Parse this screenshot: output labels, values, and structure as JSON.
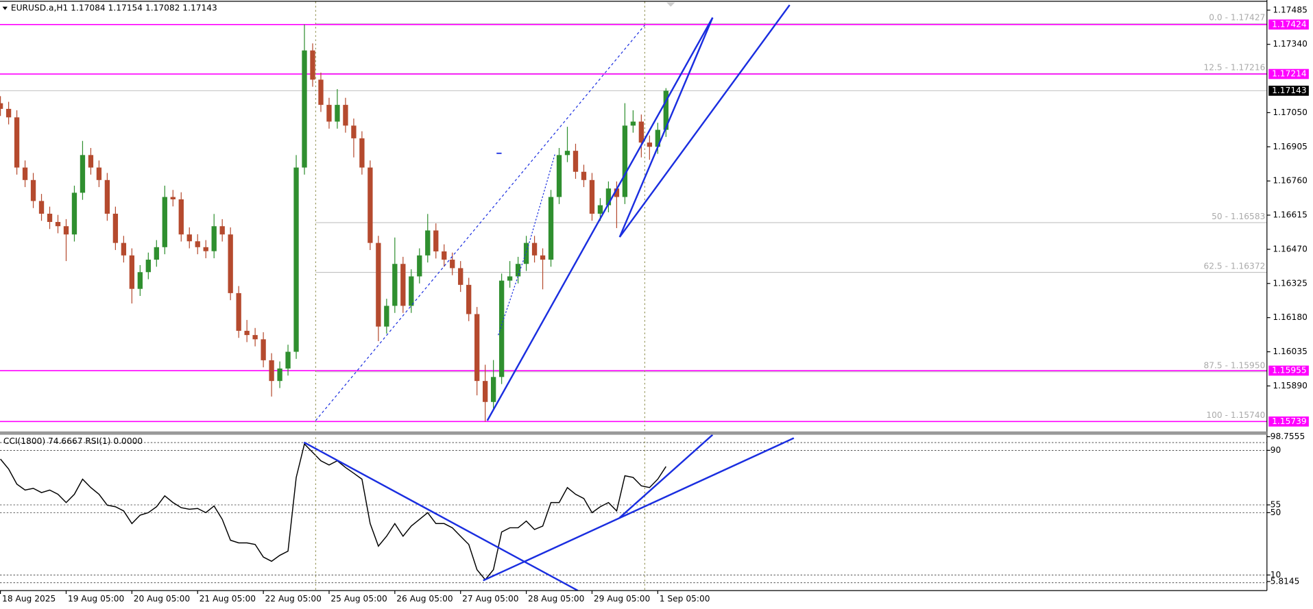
{
  "chart_data": [
    {
      "type": "candlestick",
      "title": "EURUSD.a,H1  1.17084 1.17154 1.17082 1.17143",
      "categories": [
        "18 Aug 2025",
        null,
        null,
        null,
        null,
        null,
        null,
        null,
        "19 Aug 05:00",
        null,
        null,
        null,
        null,
        null,
        null,
        null,
        "20 Aug 05:00",
        null,
        null,
        null,
        null,
        null,
        null,
        null,
        "21 Aug 05:00",
        null,
        null,
        null,
        null,
        null,
        null,
        null,
        "22 Aug 05:00",
        null,
        null,
        null,
        null,
        null,
        null,
        null,
        "25 Aug 05:00",
        null,
        null,
        null,
        null,
        null,
        null,
        null,
        "26 Aug 05:00",
        null,
        null,
        null,
        null,
        null,
        null,
        null,
        "27 Aug 05:00",
        null,
        null,
        null,
        null,
        null,
        null,
        null,
        "28 Aug 05:00",
        null,
        null,
        null,
        null,
        null,
        null,
        null,
        "29 Aug 05:00",
        null,
        null,
        null,
        null,
        null,
        null,
        null,
        "1 Sep 05:00",
        null
      ],
      "open": [
        1.1709,
        1.17066,
        1.1703,
        1.16817,
        1.16764,
        1.16675,
        1.16621,
        1.16586,
        1.16568,
        1.16533,
        1.1671,
        1.1687,
        1.16817,
        1.16764,
        1.16621,
        1.16497,
        1.16444,
        1.16302,
        1.16373,
        1.16426,
        1.16479,
        1.16692,
        1.16682,
        1.16533,
        1.16504,
        1.16479,
        1.16462,
        1.16568,
        1.16533,
        1.16284,
        1.16124,
        1.16106,
        1.16088,
        1.15999,
        1.15911,
        1.15964,
        1.16035,
        1.16817,
        1.17314,
        1.1719,
        1.17083,
        1.17012,
        1.17083,
        1.16995,
        1.16941,
        1.16817,
        1.16497,
        1.16142,
        1.1623,
        1.16408,
        1.1623,
        1.16355,
        1.16444,
        1.1655,
        1.16461,
        1.16426,
        1.1639,
        1.16319,
        1.16195,
        1.15911,
        1.15822,
        1.15928,
        1.16337,
        1.16355,
        1.16408,
        1.16497,
        1.16444,
        1.16426,
        1.16692,
        1.1687,
        1.16888,
        1.16799,
        1.16764,
        1.16621,
        1.16657,
        1.16728,
        1.16692,
        1.16995,
        1.17012,
        1.16923,
        1.16905,
        1.16977
      ],
      "high": [
        1.1712,
        1.17096,
        1.1706,
        1.16847,
        1.16794,
        1.16705,
        1.16651,
        1.16616,
        1.16598,
        1.1674,
        1.1693,
        1.169,
        1.16847,
        1.16794,
        1.16651,
        1.16527,
        1.16474,
        1.16403,
        1.16456,
        1.16509,
        1.1674,
        1.16722,
        1.16712,
        1.16563,
        1.16534,
        1.16509,
        1.1662,
        1.16598,
        1.16563,
        1.16314,
        1.1617,
        1.16136,
        1.16118,
        1.16029,
        1.15994,
        1.16065,
        1.1687,
        1.17424,
        1.17344,
        1.1722,
        1.17113,
        1.1715,
        1.17113,
        1.17025,
        1.16971,
        1.16847,
        1.16527,
        1.1626,
        1.1652,
        1.16438,
        1.16385,
        1.16474,
        1.1662,
        1.1658,
        1.16491,
        1.16456,
        1.1642,
        1.16349,
        1.16225,
        1.1598,
        1.16,
        1.16367,
        1.1642,
        1.16438,
        1.16527,
        1.16527,
        1.16474,
        1.16722,
        1.169,
        1.1699,
        1.16918,
        1.16829,
        1.16794,
        1.16687,
        1.16758,
        1.16758,
        1.1709,
        1.1706,
        1.17042,
        1.16953,
        1.17007,
        1.17154
      ],
      "low": [
        1.17036,
        1.17,
        1.16787,
        1.16734,
        1.16645,
        1.16591,
        1.16556,
        1.16538,
        1.1642,
        1.16503,
        1.1668,
        1.16787,
        1.16734,
        1.16591,
        1.16467,
        1.16414,
        1.1624,
        1.16272,
        1.16343,
        1.16396,
        1.16449,
        1.16652,
        1.16503,
        1.16474,
        1.16449,
        1.16432,
        1.16432,
        1.16503,
        1.16254,
        1.16094,
        1.16076,
        1.16058,
        1.15969,
        1.15845,
        1.15881,
        1.15934,
        1.16005,
        1.16787,
        1.1716,
        1.17053,
        1.16982,
        1.16982,
        1.16965,
        1.1686,
        1.16787,
        1.16467,
        1.1608,
        1.16112,
        1.162,
        1.162,
        1.162,
        1.16325,
        1.16414,
        1.16431,
        1.16396,
        1.1636,
        1.16289,
        1.16165,
        1.1585,
        1.15739,
        1.15792,
        1.15898,
        1.16307,
        1.16325,
        1.16378,
        1.16414,
        1.163,
        1.16396,
        1.16662,
        1.1684,
        1.16769,
        1.16734,
        1.16591,
        1.16591,
        1.16627,
        1.1656,
        1.16662,
        1.16965,
        1.1686,
        1.1685,
        1.16875,
        1.16947
      ],
      "close": [
        1.17066,
        1.1703,
        1.16817,
        1.16764,
        1.16675,
        1.16621,
        1.16586,
        1.16568,
        1.16533,
        1.1671,
        1.1687,
        1.16817,
        1.16764,
        1.16621,
        1.16497,
        1.16444,
        1.16302,
        1.16373,
        1.16426,
        1.16479,
        1.16692,
        1.16682,
        1.16533,
        1.16504,
        1.16479,
        1.16462,
        1.16568,
        1.16533,
        1.16284,
        1.16124,
        1.16106,
        1.16088,
        1.15999,
        1.15911,
        1.15964,
        1.16035,
        1.16817,
        1.17314,
        1.1719,
        1.17083,
        1.17012,
        1.17083,
        1.16995,
        1.16941,
        1.16817,
        1.16497,
        1.16142,
        1.1623,
        1.16408,
        1.1623,
        1.16355,
        1.16444,
        1.1655,
        1.16461,
        1.16426,
        1.1639,
        1.16319,
        1.16195,
        1.15911,
        1.15822,
        1.15928,
        1.16337,
        1.16355,
        1.16408,
        1.16497,
        1.16444,
        1.16426,
        1.16692,
        1.1687,
        1.16888,
        1.16799,
        1.16764,
        1.16621,
        1.16657,
        1.16728,
        1.16692,
        1.16995,
        1.17012,
        1.16923,
        1.16905,
        1.16977,
        1.17143
      ],
      "up_color": "#2f8f2f",
      "down_color": "#b54a2e",
      "ylim": [
        1.15697,
        1.17521
      ],
      "yticks": [
        1.17485,
        {
          "value": 1.1734,
          "label": "1.17340"
        },
        {
          "value": 1.1705,
          "label": "1.17050"
        },
        1.16905,
        {
          "value": 1.1676,
          "label": "1.16760"
        },
        1.16615,
        {
          "value": 1.1647,
          "label": "1.16470"
        },
        1.16325,
        {
          "value": 1.1618,
          "label": "1.16180"
        },
        1.16035,
        {
          "value": 1.1589,
          "label": "1.15890"
        }
      ],
      "hlines": [
        1.17424,
        1.17214,
        1.15955,
        1.15739
      ],
      "hline_color": "#ff00ff",
      "last_price": 1.17143,
      "fib_levels": [
        {
          "label": "0.0 - 1.17427",
          "value": 1.17427
        },
        {
          "label": "12.5 - 1.17216",
          "value": 1.17216
        },
        {
          "label": "50 - 1.16583",
          "value": 1.16583
        },
        {
          "label": "62.5 - 1.16372",
          "value": 1.16372
        },
        {
          "label": "87.5 - 1.15950",
          "value": 1.1595
        },
        {
          "label": "100 - 1.15740",
          "value": 1.1574
        }
      ]
    },
    {
      "type": "line",
      "title": "CCI(1800) 74.6667  RSI(1) 0.0000",
      "color": "#000000",
      "values": [
        84.4,
        78,
        68.3,
        64.5,
        65.6,
        62.9,
        64.5,
        61.8,
        56.5,
        61.8,
        71.5,
        66.1,
        61.8,
        54.8,
        53.8,
        51.1,
        43,
        48.4,
        50,
        53.8,
        60.8,
        56.5,
        53.2,
        52.2,
        52.7,
        50,
        54.3,
        45.7,
        32.3,
        30.6,
        30.6,
        29.6,
        21.5,
        18.8,
        22.6,
        25.3,
        72.6,
        94.1,
        88.7,
        83.3,
        80.6,
        83.3,
        79,
        75.3,
        71.5,
        43,
        28.5,
        34.9,
        43,
        34.9,
        41.4,
        45.7,
        50,
        43,
        43,
        40.3,
        34.9,
        29.6,
        13.4,
        7,
        13.4,
        37.6,
        40.3,
        40.3,
        44.6,
        39.2,
        41.4,
        56.5,
        56.5,
        66.1,
        61.8,
        59.1,
        50,
        53.8,
        56.5,
        51.1,
        73.7,
        72.6,
        67.2,
        66.1,
        71.5,
        79.6
      ],
      "ylim": [
        0,
        100
      ],
      "yticks": [
        98.7555,
        90,
        55,
        50,
        10,
        5.8145
      ],
      "levels": [
        95,
        90,
        55,
        50,
        10,
        5
      ]
    }
  ]
}
